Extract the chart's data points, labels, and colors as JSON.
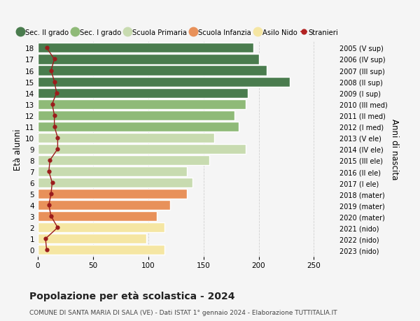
{
  "ages": [
    0,
    1,
    2,
    3,
    4,
    5,
    6,
    7,
    8,
    9,
    10,
    11,
    12,
    13,
    14,
    15,
    16,
    17,
    18
  ],
  "right_labels": [
    "2023 (nido)",
    "2022 (nido)",
    "2021 (nido)",
    "2020 (mater)",
    "2019 (mater)",
    "2018 (mater)",
    "2017 (I ele)",
    "2016 (II ele)",
    "2015 (III ele)",
    "2014 (IV ele)",
    "2013 (V ele)",
    "2012 (I med)",
    "2011 (II med)",
    "2010 (III med)",
    "2009 (I sup)",
    "2008 (II sup)",
    "2007 (III sup)",
    "2006 (IV sup)",
    "2005 (V sup)"
  ],
  "bar_values": [
    115,
    98,
    115,
    108,
    120,
    135,
    140,
    135,
    155,
    188,
    160,
    182,
    178,
    188,
    190,
    228,
    207,
    200,
    195
  ],
  "bar_colors": [
    "#f5e6a3",
    "#f5e6a3",
    "#f5e6a3",
    "#e8915a",
    "#e8915a",
    "#e8915a",
    "#c8dbb0",
    "#c8dbb0",
    "#c8dbb0",
    "#c8dbb0",
    "#c8dbb0",
    "#8fba78",
    "#8fba78",
    "#8fba78",
    "#4a7c4e",
    "#4a7c4e",
    "#4a7c4e",
    "#4a7c4e",
    "#4a7c4e"
  ],
  "stranieri_values": [
    8,
    7,
    18,
    12,
    10,
    12,
    13,
    10,
    11,
    18,
    18,
    15,
    15,
    13,
    17,
    15,
    12,
    15,
    8
  ],
  "title": "Popolazione per età scolastica - 2024",
  "subtitle": "COMUNE DI SANTA MARIA DI SALA (VE) - Dati ISTAT 1° gennaio 2024 - Elaborazione TUTTITALIA.IT",
  "ylabel_left": "Età alunni",
  "ylabel_right": "Anni di nascita",
  "xlim": [
    0,
    270
  ],
  "xticks": [
    0,
    50,
    100,
    150,
    200,
    250
  ],
  "bg_color": "#f5f5f5",
  "legend_items": [
    {
      "label": "Sec. II grado",
      "color": "#4a7c4e",
      "type": "patch"
    },
    {
      "label": "Sec. I grado",
      "color": "#8fba78",
      "type": "patch"
    },
    {
      "label": "Scuola Primaria",
      "color": "#c8dbb0",
      "type": "patch"
    },
    {
      "label": "Scuola Infanzia",
      "color": "#e8915a",
      "type": "patch"
    },
    {
      "label": "Asilo Nido",
      "color": "#f5e6a3",
      "type": "patch"
    },
    {
      "label": "Stranieri",
      "color": "#b22222",
      "type": "line"
    }
  ],
  "grid_color": "#d0d0d0",
  "stranieri_line_color": "#9b1c1c",
  "stranieri_marker_color": "#9b1c1c"
}
